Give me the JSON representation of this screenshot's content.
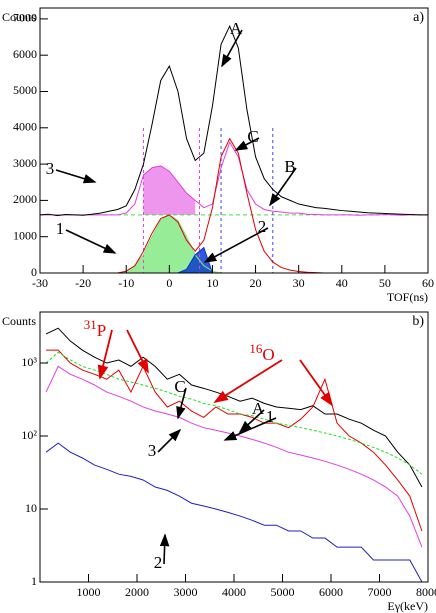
{
  "chart_data": [
    {
      "type": "line",
      "panel_label": "a)",
      "y_label": "Counts",
      "x_label": "TOF(ns)",
      "xlim": [
        -30,
        60
      ],
      "xticks": [
        -30,
        -20,
        -10,
        0,
        10,
        20,
        30,
        40,
        50,
        60
      ],
      "ylim": [
        0,
        7300
      ],
      "yticks": [
        0,
        1000,
        2000,
        3000,
        4000,
        5000,
        6000,
        7000
      ],
      "log_y": false,
      "x": [
        -30,
        -28,
        -26,
        -24,
        -22,
        -20,
        -18,
        -16,
        -14,
        -12,
        -10,
        -8,
        -6,
        -4,
        -2,
        0,
        2,
        4,
        6,
        8,
        10,
        12,
        14,
        16,
        18,
        20,
        22,
        24,
        26,
        28,
        30,
        32,
        34,
        36,
        38,
        40,
        42,
        44,
        46,
        48,
        50,
        52,
        54,
        56,
        58,
        60
      ],
      "background": {
        "value": 1600,
        "color": "#40e040"
      },
      "cut_lines": [
        {
          "x": -6,
          "color": "#e040e0"
        },
        {
          "x": 7,
          "color": "#e040e0"
        },
        {
          "x": 12,
          "color": "#4040ff"
        },
        {
          "x": 24,
          "color": "#4040ff"
        }
      ],
      "series": [
        {
          "color": "#7de87d",
          "fill": "below",
          "values": [
            0,
            0,
            0,
            0,
            0,
            0,
            0,
            0,
            0,
            0,
            50,
            200,
            500,
            1000,
            1450,
            1600,
            1450,
            1000,
            500,
            200,
            50,
            0,
            0,
            0,
            0,
            0,
            0,
            0,
            0,
            0,
            0,
            0,
            0,
            0,
            0,
            0,
            0,
            0,
            0,
            0,
            0,
            0,
            0,
            0,
            0,
            0
          ]
        },
        {
          "color": "#0030d0",
          "fill": "below",
          "values": [
            0,
            0,
            0,
            0,
            0,
            0,
            0,
            0,
            0,
            0,
            0,
            0,
            0,
            0,
            0,
            0,
            0,
            100,
            500,
            700,
            0,
            0,
            0,
            0,
            0,
            0,
            0,
            0,
            0,
            0,
            0,
            0,
            0,
            0,
            0,
            0,
            0,
            0,
            0,
            0,
            0,
            0,
            0,
            0,
            0,
            0
          ]
        },
        {
          "color": "#e040e0",
          "fill": "cut",
          "values": [
            1600,
            1600,
            1600,
            1600,
            1600,
            1600,
            1600,
            1600,
            1600,
            1600,
            1650,
            1900,
            2700,
            2900,
            2950,
            2800,
            2500,
            2200,
            2000,
            1800,
            1900,
            2900,
            3600,
            3200,
            2300,
            1900,
            1750,
            1700,
            1680,
            1650,
            1650,
            1620,
            1610,
            1600,
            1600,
            1600,
            1600,
            1590,
            1600,
            1600,
            1610,
            1600,
            1590,
            1600,
            1600,
            1600
          ]
        },
        {
          "color": "#000000",
          "values": [
            1600,
            1620,
            1580,
            1610,
            1600,
            1590,
            1620,
            1650,
            1700,
            1750,
            1850,
            2300,
            3000,
            4100,
            5300,
            5700,
            5000,
            3700,
            3100,
            3300,
            4600,
            6300,
            6800,
            6200,
            4500,
            3200,
            2600,
            2300,
            2100,
            2000,
            1900,
            1850,
            1800,
            1780,
            1750,
            1720,
            1700,
            1680,
            1660,
            1650,
            1640,
            1630,
            1620,
            1610,
            1600,
            1600
          ]
        },
        {
          "color": "#e00000",
          "values": [
            0,
            0,
            0,
            0,
            0,
            0,
            0,
            0,
            0,
            0,
            50,
            200,
            600,
            1100,
            1500,
            1600,
            1400,
            900,
            600,
            900,
            1800,
            3200,
            3700,
            3300,
            2200,
            1200,
            600,
            300,
            150,
            80,
            40,
            20,
            10,
            0,
            0,
            0,
            0,
            0,
            0,
            0,
            0,
            0,
            0,
            0,
            0,
            0
          ]
        }
      ],
      "annotations": [
        "A",
        "C",
        "B",
        "3",
        "1",
        "2"
      ]
    },
    {
      "type": "line",
      "panel_label": "b)",
      "y_label": "Counts",
      "x_label": "Eγ(keV)",
      "xlim": [
        0,
        8000
      ],
      "xticks": [
        1000,
        2000,
        3000,
        4000,
        5000,
        6000,
        7000,
        8000
      ],
      "ylim": [
        1,
        5000
      ],
      "yticks": [
        1,
        10,
        {
          "value": 100,
          "label": "10²"
        },
        {
          "value": 1000,
          "label": "10³"
        }
      ],
      "log_y": true,
      "x": [
        125,
        375,
        625,
        875,
        1125,
        1375,
        1625,
        1875,
        2125,
        2375,
        2625,
        2875,
        3125,
        3375,
        3625,
        3875,
        4125,
        4375,
        4625,
        4875,
        5125,
        5375,
        5625,
        5875,
        6125,
        6375,
        6625,
        6875,
        7125,
        7375,
        7625,
        7875
      ],
      "series": [
        {
          "color": "#000000",
          "values": [
            2500,
            3000,
            2000,
            1500,
            1200,
            1000,
            1100,
            900,
            1200,
            900,
            600,
            700,
            500,
            450,
            400,
            350,
            300,
            330,
            280,
            250,
            240,
            230,
            260,
            200,
            200,
            170,
            150,
            120,
            100,
            60,
            40,
            20
          ]
        },
        {
          "color": "#e00000",
          "values": [
            1500,
            1500,
            1000,
            800,
            700,
            600,
            800,
            400,
            900,
            400,
            250,
            300,
            220,
            180,
            250,
            200,
            200,
            180,
            150,
            150,
            130,
            170,
            250,
            600,
            150,
            100,
            80,
            60,
            40,
            25,
            15,
            5
          ]
        },
        {
          "color": "#20e020",
          "dash": true,
          "values": [
            1000,
            1400,
            1100,
            900,
            800,
            700,
            600,
            550,
            500,
            450,
            400,
            350,
            320,
            280,
            260,
            230,
            200,
            190,
            170,
            150,
            140,
            130,
            120,
            110,
            100,
            90,
            80,
            70,
            60,
            50,
            40,
            30
          ]
        },
        {
          "color": "#e040e0",
          "values": [
            400,
            900,
            700,
            600,
            500,
            400,
            350,
            300,
            250,
            220,
            200,
            180,
            150,
            130,
            120,
            110,
            100,
            90,
            80,
            70,
            60,
            55,
            50,
            45,
            40,
            35,
            30,
            25,
            20,
            15,
            8,
            3
          ]
        },
        {
          "color": "#2020c0",
          "values": [
            60,
            80,
            60,
            50,
            40,
            35,
            30,
            28,
            25,
            20,
            18,
            15,
            12,
            11,
            10,
            9,
            8,
            7,
            6,
            6,
            5,
            5,
            4,
            4,
            3,
            3,
            3,
            2,
            2,
            2,
            2,
            1
          ]
        }
      ],
      "annotations": [
        "C",
        "A",
        "1",
        "3",
        "2"
      ],
      "isotopes": [
        {
          "mass": "31",
          "element": "P"
        },
        {
          "mass": "16",
          "element": "O"
        }
      ]
    }
  ]
}
